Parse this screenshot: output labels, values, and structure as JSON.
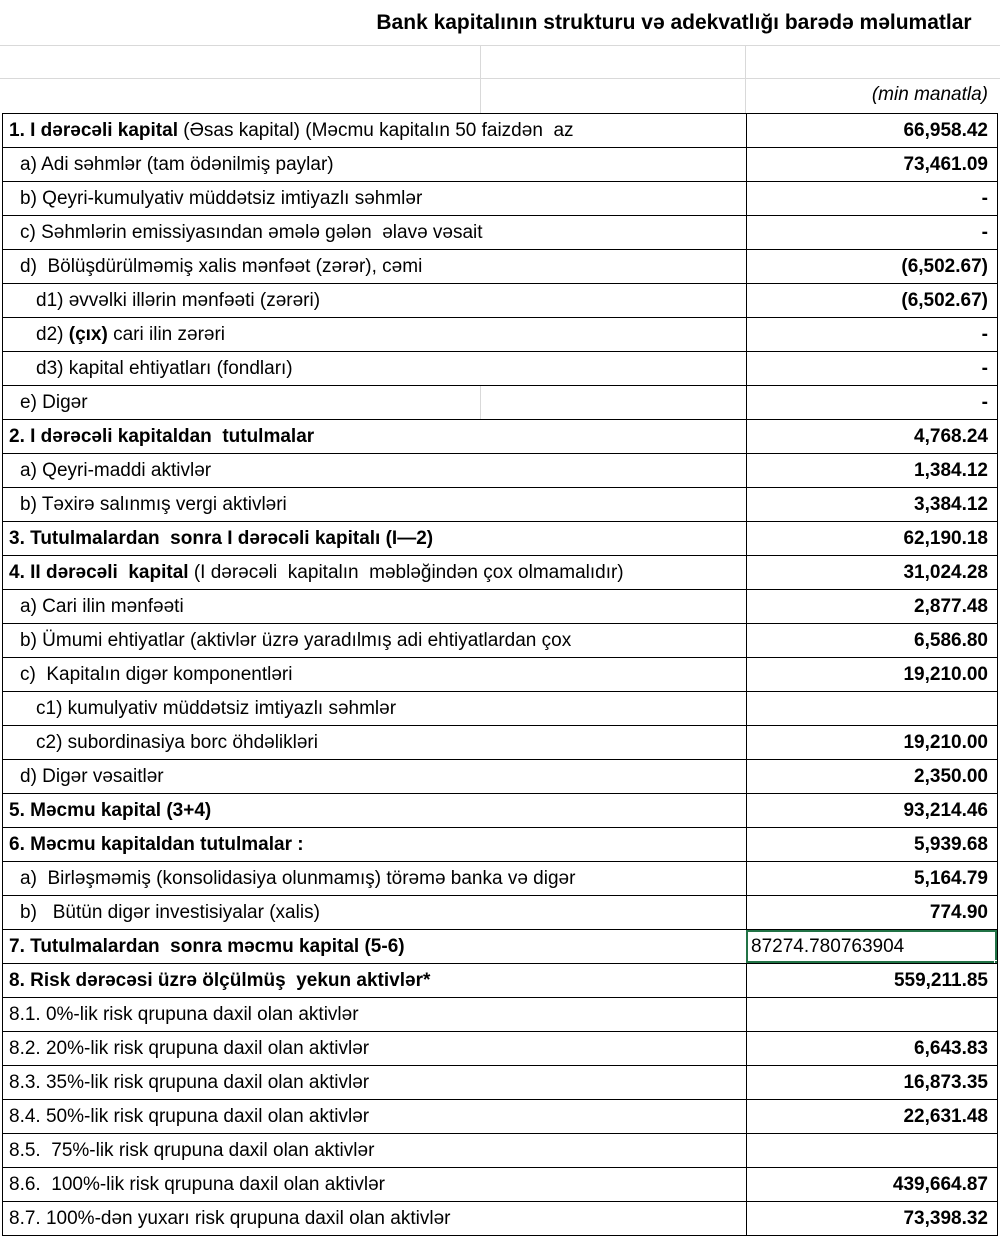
{
  "title": "Bank kapitalının strukturu və adekvatlığı barədə məlumatlar",
  "unit_note": "(min manatla)",
  "selection_color": "#217346",
  "rows": [
    {
      "indent": 0,
      "segments": [
        {
          "t": "1. I dərəcəli kapital",
          "b": true
        },
        {
          "t": " (Əsas kapital) (Məcmu kapitalın 50 faizdən  az",
          "b": false
        }
      ],
      "value": "66,958.42",
      "value_bold": true
    },
    {
      "indent": 1,
      "segments": [
        {
          "t": "a) Adi səhmlər (tam ödənilmiş paylar)",
          "b": false
        }
      ],
      "value": "73,461.09",
      "value_bold": true
    },
    {
      "indent": 1,
      "segments": [
        {
          "t": "b) Qeyri-kumulyativ müddətsiz imtiyazlı səhmlər",
          "b": false
        }
      ],
      "value": "-",
      "value_bold": true
    },
    {
      "indent": 1,
      "segments": [
        {
          "t": "c) Səhmlərin emissiyasından əmələ gələn  əlavə vəsait",
          "b": false
        }
      ],
      "value": "-",
      "value_bold": true
    },
    {
      "indent": 1,
      "segments": [
        {
          "t": "d)  Bölüşdürülməmiş xalis mənfəət (zərər), cəmi",
          "b": false
        }
      ],
      "value": "(6,502.67)",
      "value_bold": true
    },
    {
      "indent": 2,
      "segments": [
        {
          "t": "d1) əvvəlki illərin mənfəəti (zərəri)",
          "b": false
        }
      ],
      "value": "(6,502.67)",
      "value_bold": true
    },
    {
      "indent": 2,
      "segments": [
        {
          "t": "d2) ",
          "b": false
        },
        {
          "t": "(çıx)",
          "b": true
        },
        {
          "t": " cari ilin zərəri",
          "b": false
        }
      ],
      "value": "-",
      "value_bold": true
    },
    {
      "indent": 2,
      "segments": [
        {
          "t": "d3) kapital ehtiyatları (fondları)",
          "b": false
        }
      ],
      "value": "-",
      "value_bold": true
    },
    {
      "indent": 1,
      "divider": true,
      "segments": [
        {
          "t": "e) Digər",
          "b": false
        }
      ],
      "value": "-",
      "value_bold": true
    },
    {
      "indent": 0,
      "segments": [
        {
          "t": "2. I dərəcəli kapitaldan  tutulmalar",
          "b": true
        }
      ],
      "value": "4,768.24",
      "value_bold": true
    },
    {
      "indent": 1,
      "segments": [
        {
          "t": "a) Qeyri-maddi aktivlər",
          "b": false
        }
      ],
      "value": "1,384.12",
      "value_bold": true
    },
    {
      "indent": 1,
      "segments": [
        {
          "t": "b) Təxirə salınmış vergi aktivləri",
          "b": false
        }
      ],
      "value": "3,384.12",
      "value_bold": true
    },
    {
      "indent": 0,
      "segments": [
        {
          "t": "3. Tutulmalardan  sonra I dərəcəli kapitalı (I—2)",
          "b": true
        }
      ],
      "value": "62,190.18",
      "value_bold": true
    },
    {
      "indent": 0,
      "segments": [
        {
          "t": "4. II dərəcəli  kapital",
          "b": true
        },
        {
          "t": " (I dərəcəli  kapitalın  məbləğindən çox olmamalıdır)",
          "b": false
        }
      ],
      "value": "31,024.28",
      "value_bold": true
    },
    {
      "indent": 1,
      "segments": [
        {
          "t": "a) Cari ilin mənfəəti",
          "b": false
        }
      ],
      "value": "2,877.48",
      "value_bold": true
    },
    {
      "indent": 1,
      "segments": [
        {
          "t": "b) Ümumi ehtiyatlar (aktivlər üzrə yaradılmış adi ehtiyatlardan çox",
          "b": false
        }
      ],
      "value": "6,586.80",
      "value_bold": true
    },
    {
      "indent": 1,
      "segments": [
        {
          "t": "c)  Kapitalın digər komponentləri",
          "b": false
        }
      ],
      "value": "19,210.00",
      "value_bold": true
    },
    {
      "indent": 2,
      "segments": [
        {
          "t": "c1) kumulyativ müddətsiz imtiyazlı səhmlər",
          "b": false
        }
      ],
      "value": "",
      "value_bold": true
    },
    {
      "indent": 2,
      "segments": [
        {
          "t": "c2) subordinasiya borc öhdəlikləri",
          "b": false
        }
      ],
      "value": "19,210.00",
      "value_bold": true
    },
    {
      "indent": 1,
      "segments": [
        {
          "t": "d) Digər vəsaitlər",
          "b": false
        }
      ],
      "value": "2,350.00",
      "value_bold": true
    },
    {
      "indent": 0,
      "segments": [
        {
          "t": "5. Məcmu kapital (3+4)",
          "b": true
        }
      ],
      "value": "93,214.46",
      "value_bold": true
    },
    {
      "indent": 0,
      "segments": [
        {
          "t": "6. Məcmu kapitaldan tutulmalar :",
          "b": true
        }
      ],
      "value": "5,939.68",
      "value_bold": true
    },
    {
      "indent": 1,
      "segments": [
        {
          "t": "a)  Birləşməmiş (konsolidasiya olunmamış) törəmə banka və digər",
          "b": false
        }
      ],
      "value": "5,164.79",
      "value_bold": true
    },
    {
      "indent": 1,
      "segments": [
        {
          "t": "b)   Bütün digər investisiyalar (xalis)",
          "b": false
        }
      ],
      "value": "774.90",
      "value_bold": true
    },
    {
      "indent": 0,
      "selected": true,
      "value_align": "left",
      "segments": [
        {
          "t": "7. Tutulmalardan  sonra məcmu kapital (5-6)",
          "b": true
        }
      ],
      "value": "87274.780763904",
      "value_bold": false
    },
    {
      "indent": 0,
      "segments": [
        {
          "t": "8. Risk dərəcəsi üzrə ölçülmüş  yekun aktivlər*",
          "b": true
        }
      ],
      "value": "559,211.85",
      "value_bold": true
    },
    {
      "indent": 0,
      "segments": [
        {
          "t": "8.1. 0%-lik risk qrupuna daxil olan aktivlər",
          "b": false
        }
      ],
      "value": "",
      "value_bold": true
    },
    {
      "indent": 0,
      "segments": [
        {
          "t": "8.2. 20%-lik risk qrupuna daxil olan aktivlər",
          "b": false
        }
      ],
      "value": "6,643.83",
      "value_bold": true
    },
    {
      "indent": 0,
      "segments": [
        {
          "t": "8.3. 35%-lik risk qrupuna daxil olan aktivlər",
          "b": false
        }
      ],
      "value": "16,873.35",
      "value_bold": true
    },
    {
      "indent": 0,
      "segments": [
        {
          "t": "8.4. 50%-lik risk qrupuna daxil olan aktivlər",
          "b": false
        }
      ],
      "value": "22,631.48",
      "value_bold": true
    },
    {
      "indent": 0,
      "segments": [
        {
          "t": "8.5.  75%-lik risk qrupuna daxil olan aktivlər",
          "b": false
        }
      ],
      "value": "",
      "value_bold": true
    },
    {
      "indent": 0,
      "segments": [
        {
          "t": "8.6.  100%-lik risk qrupuna daxil olan aktivlər",
          "b": false
        }
      ],
      "value": "439,664.87",
      "value_bold": true
    },
    {
      "indent": 0,
      "segments": [
        {
          "t": "8.7. 100%-dən yuxarı risk qrupuna daxil olan aktivlər",
          "b": false
        }
      ],
      "value": "73,398.32",
      "value_bold": true
    }
  ]
}
